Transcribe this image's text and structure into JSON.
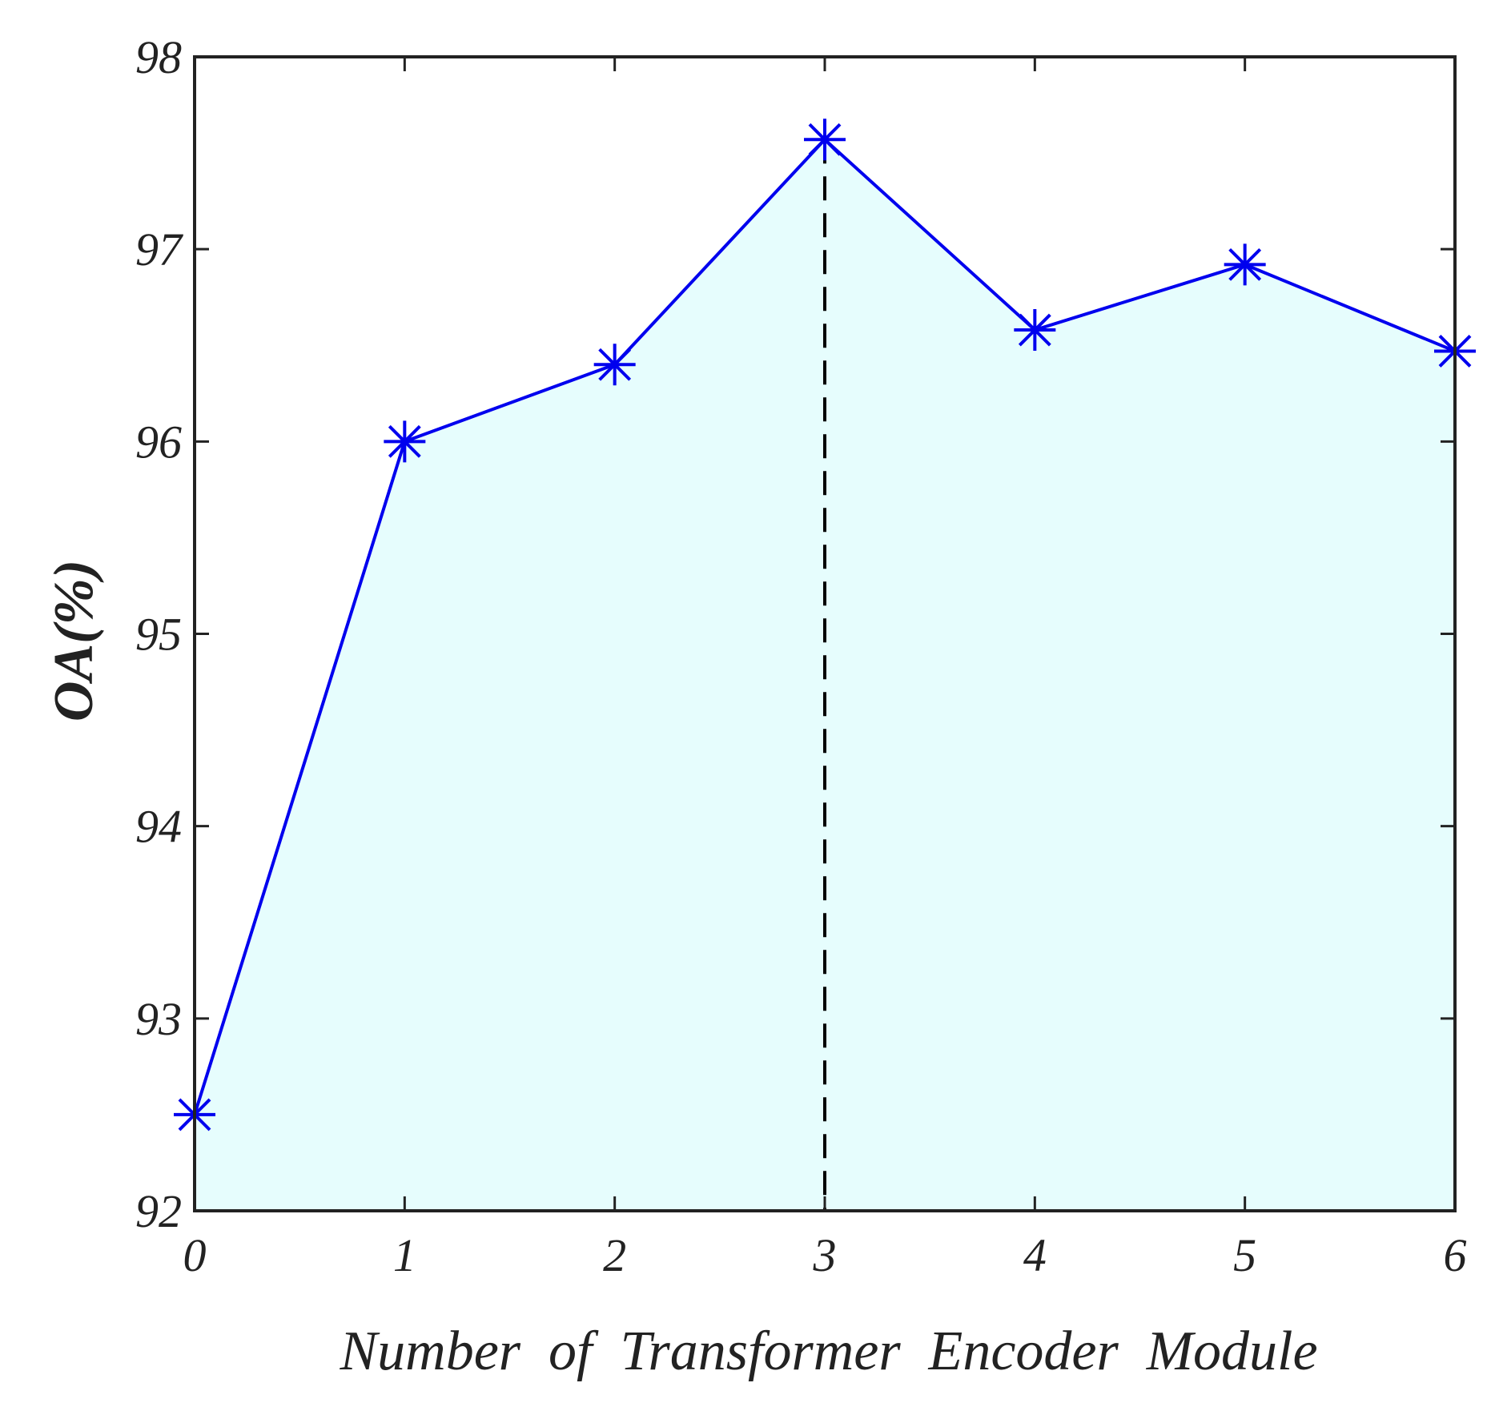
{
  "chart_data": {
    "type": "area",
    "x": [
      0,
      1,
      2,
      3,
      4,
      5,
      6
    ],
    "series": [
      {
        "values": [
          92.5,
          96.0,
          96.4,
          97.57,
          96.58,
          96.92,
          96.47
        ]
      }
    ],
    "xlabel": "Number  of  Transformer  Encoder  Module",
    "ylabel": "OA(%)",
    "xlim": [
      0,
      6
    ],
    "ylim": [
      92,
      98
    ],
    "xticks": [
      "0",
      "1",
      "2",
      "3",
      "4",
      "5",
      "6"
    ],
    "yticks": [
      "92",
      "93",
      "94",
      "95",
      "96",
      "97",
      "98"
    ],
    "highlight_x": 3,
    "grid": false,
    "colors": {
      "line": "#0000ee",
      "fill": "#e6fdfd",
      "reference_line": "#000000",
      "axes": "#222222"
    },
    "marker": "asterisk"
  }
}
